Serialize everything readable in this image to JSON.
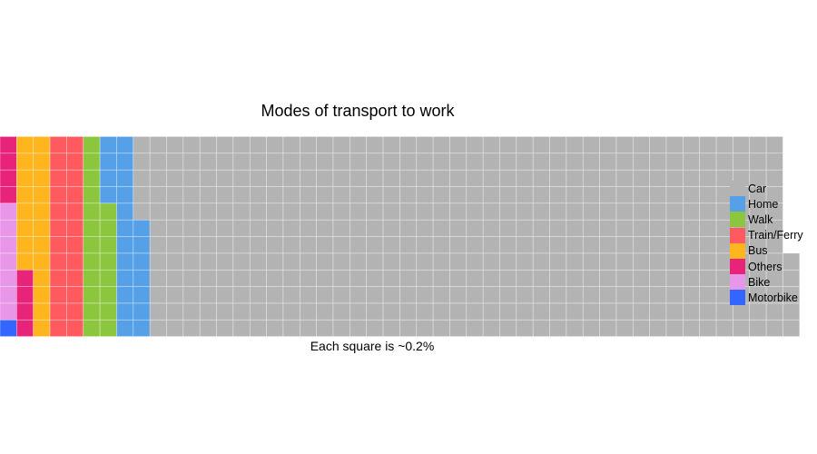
{
  "chart_data": {
    "type": "waffle",
    "title": "Modes of transport to work",
    "xlabel": "Each square is ~0.2%",
    "ylabel": "",
    "rows": 12,
    "square_percent": 0.2,
    "legend_position": "right",
    "grid": true,
    "series": [
      {
        "name": "Car",
        "value": 466,
        "color": "#B3B3B3"
      },
      {
        "name": "Home",
        "value": 23,
        "color": "#56A0E8"
      },
      {
        "name": "Walk",
        "value": 20,
        "color": "#8CC63F"
      },
      {
        "name": "Train/Ferry",
        "value": 24,
        "color": "#FF5A5F"
      },
      {
        "name": "Bus",
        "value": 20,
        "color": "#FFB61E"
      },
      {
        "name": "Others",
        "value": 8,
        "color": "#E8237A"
      },
      {
        "name": "Bike",
        "value": 7,
        "color": "#E896E8"
      },
      {
        "name": "Motorbike",
        "value": 1,
        "color": "#3366FF"
      }
    ]
  }
}
